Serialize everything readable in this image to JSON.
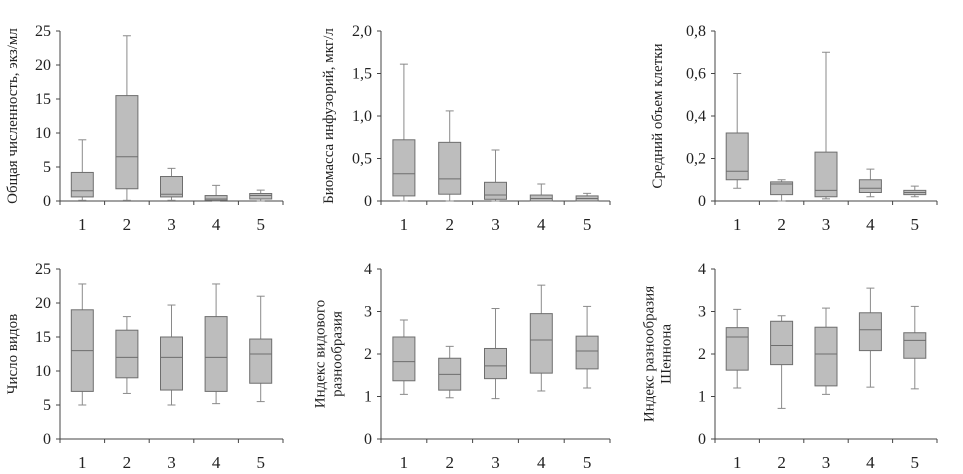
{
  "chart_data": [
    {
      "type": "boxplot",
      "ylabel": [
        "Общая численность, экз/мл"
      ],
      "ylim": [
        0,
        25
      ],
      "yticks": [
        "0",
        "5",
        "10",
        "15",
        "20",
        "25"
      ],
      "categories": [
        "1",
        "2",
        "3",
        "4",
        "5"
      ],
      "boxes": [
        {
          "min": 0.1,
          "q1": 0.6,
          "median": 1.5,
          "q3": 4.2,
          "max": 9.0
        },
        {
          "min": 0.1,
          "q1": 1.8,
          "median": 6.5,
          "q3": 15.5,
          "max": 24.3
        },
        {
          "min": 0.1,
          "q1": 0.6,
          "median": 1.0,
          "q3": 3.6,
          "max": 4.8
        },
        {
          "min": 0.0,
          "q1": 0.1,
          "median": 0.3,
          "q3": 0.8,
          "max": 2.3
        },
        {
          "min": 0.0,
          "q1": 0.3,
          "median": 0.8,
          "q3": 1.1,
          "max": 1.6
        }
      ]
    },
    {
      "type": "boxplot",
      "ylabel": [
        "Биомасса инфузорий, мкг/л"
      ],
      "ylim": [
        0,
        2
      ],
      "yticks": [
        "0",
        "0,5",
        "1,0",
        "1,5",
        "2,0"
      ],
      "categories": [
        "1",
        "2",
        "3",
        "4",
        "5"
      ],
      "boxes": [
        {
          "min": 0.0,
          "q1": 0.06,
          "median": 0.32,
          "q3": 0.72,
          "max": 1.61
        },
        {
          "min": 0.0,
          "q1": 0.08,
          "median": 0.26,
          "q3": 0.69,
          "max": 1.06
        },
        {
          "min": 0.0,
          "q1": 0.02,
          "median": 0.07,
          "q3": 0.22,
          "max": 0.6
        },
        {
          "min": 0.0,
          "q1": 0.0,
          "median": 0.03,
          "q3": 0.07,
          "max": 0.2
        },
        {
          "min": 0.0,
          "q1": 0.0,
          "median": 0.03,
          "q3": 0.06,
          "max": 0.09
        }
      ]
    },
    {
      "type": "boxplot",
      "ylabel": [
        "Средний объем клетки"
      ],
      "ylim": [
        0,
        0.8
      ],
      "yticks": [
        "0",
        "0,2",
        "0,4",
        "0,6",
        "0,8"
      ],
      "categories": [
        "1",
        "2",
        "3",
        "4",
        "5"
      ],
      "boxes": [
        {
          "min": 0.06,
          "q1": 0.1,
          "median": 0.14,
          "q3": 0.32,
          "max": 0.6
        },
        {
          "min": 0.0,
          "q1": 0.03,
          "median": 0.08,
          "q3": 0.09,
          "max": 0.1
        },
        {
          "min": 0.01,
          "q1": 0.02,
          "median": 0.05,
          "q3": 0.23,
          "max": 0.7
        },
        {
          "min": 0.02,
          "q1": 0.04,
          "median": 0.06,
          "q3": 0.1,
          "max": 0.15
        },
        {
          "min": 0.02,
          "q1": 0.03,
          "median": 0.04,
          "q3": 0.05,
          "max": 0.07
        }
      ]
    },
    {
      "type": "boxplot",
      "ylabel": [
        "Число видов"
      ],
      "ylim": [
        0,
        25
      ],
      "yticks": [
        "0",
        "5",
        "10",
        "15",
        "20",
        "25"
      ],
      "categories": [
        "1",
        "2",
        "3",
        "4",
        "5"
      ],
      "boxes": [
        {
          "min": 5.0,
          "q1": 7.0,
          "median": 13.0,
          "q3": 19.0,
          "max": 22.8
        },
        {
          "min": 6.7,
          "q1": 9.0,
          "median": 12.0,
          "q3": 16.0,
          "max": 18.0
        },
        {
          "min": 5.0,
          "q1": 7.2,
          "median": 12.0,
          "q3": 15.0,
          "max": 19.7
        },
        {
          "min": 5.2,
          "q1": 7.0,
          "median": 12.0,
          "q3": 18.0,
          "max": 22.8
        },
        {
          "min": 5.5,
          "q1": 8.2,
          "median": 12.5,
          "q3": 14.7,
          "max": 21.0
        }
      ]
    },
    {
      "type": "boxplot",
      "ylabel": [
        "Индекс видового",
        "разнообразия"
      ],
      "ylim": [
        0,
        4
      ],
      "yticks": [
        "0",
        "1",
        "2",
        "3",
        "4"
      ],
      "categories": [
        "1",
        "2",
        "3",
        "4",
        "5"
      ],
      "boxes": [
        {
          "min": 1.05,
          "q1": 1.37,
          "median": 1.82,
          "q3": 2.4,
          "max": 2.8
        },
        {
          "min": 0.97,
          "q1": 1.15,
          "median": 1.52,
          "q3": 1.9,
          "max": 2.18
        },
        {
          "min": 0.95,
          "q1": 1.42,
          "median": 1.72,
          "q3": 2.13,
          "max": 3.07
        },
        {
          "min": 1.13,
          "q1": 1.55,
          "median": 2.33,
          "q3": 2.95,
          "max": 3.62
        },
        {
          "min": 1.2,
          "q1": 1.65,
          "median": 2.07,
          "q3": 2.42,
          "max": 3.12
        }
      ]
    },
    {
      "type": "boxplot",
      "ylabel": [
        "Индекс разнообразия",
        "Шеннона"
      ],
      "ylim": [
        0,
        4
      ],
      "yticks": [
        "0",
        "1",
        "2",
        "3",
        "4"
      ],
      "categories": [
        "1",
        "2",
        "3",
        "4",
        "5"
      ],
      "boxes": [
        {
          "min": 1.2,
          "q1": 1.62,
          "median": 2.4,
          "q3": 2.62,
          "max": 3.05
        },
        {
          "min": 0.72,
          "q1": 1.75,
          "median": 2.2,
          "q3": 2.77,
          "max": 2.9
        },
        {
          "min": 1.05,
          "q1": 1.25,
          "median": 2.0,
          "q3": 2.63,
          "max": 3.08
        },
        {
          "min": 1.22,
          "q1": 2.08,
          "median": 2.57,
          "q3": 2.97,
          "max": 3.55
        },
        {
          "min": 1.18,
          "q1": 1.9,
          "median": 2.32,
          "q3": 2.5,
          "max": 3.12
        }
      ]
    }
  ]
}
